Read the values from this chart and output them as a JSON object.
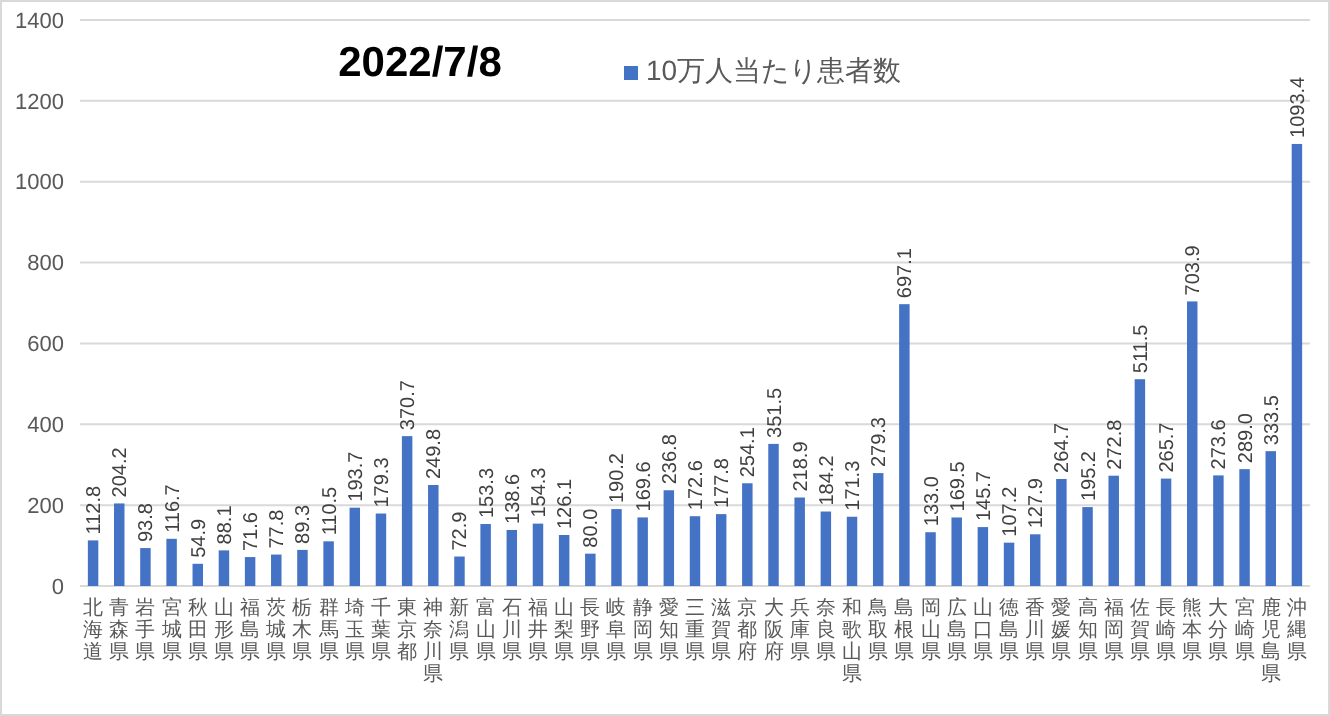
{
  "chart_data": {
    "type": "bar",
    "title": "2022/7/8",
    "categories": [
      "北海道",
      "青森県",
      "岩手県",
      "宮城県",
      "秋田県",
      "山形県",
      "福島県",
      "茨城県",
      "栃木県",
      "群馬県",
      "埼玉県",
      "千葉県",
      "東京都",
      "神奈川県",
      "新潟県",
      "富山県",
      "石川県",
      "福井県",
      "山梨県",
      "長野県",
      "岐阜県",
      "静岡県",
      "愛知県",
      "三重県",
      "滋賀県",
      "京都府",
      "大阪府",
      "兵庫県",
      "奈良県",
      "和歌山県",
      "鳥取県",
      "島根県",
      "岡山県",
      "広島県",
      "山口県",
      "徳島県",
      "香川県",
      "愛媛県",
      "高知県",
      "福岡県",
      "佐賀県",
      "長崎県",
      "熊本県",
      "大分県",
      "宮崎県",
      "鹿児島県",
      "沖縄県"
    ],
    "series": [
      {
        "name": "10万人当たり患者数",
        "color": "#4472c4",
        "values": [
          112.8,
          204.2,
          93.8,
          116.7,
          54.9,
          88.1,
          71.6,
          77.8,
          89.3,
          110.5,
          193.7,
          179.3,
          370.7,
          249.8,
          72.9,
          153.3,
          138.6,
          154.3,
          126.1,
          80.0,
          190.2,
          169.6,
          236.8,
          172.6,
          177.8,
          254.1,
          351.5,
          218.9,
          184.2,
          171.3,
          279.3,
          697.1,
          133.0,
          169.5,
          145.7,
          107.2,
          127.9,
          264.7,
          195.2,
          272.8,
          511.5,
          265.7,
          703.9,
          273.6,
          289.0,
          333.5,
          1093.4
        ],
        "value_labels": [
          "112.8",
          "204.2",
          "93.8",
          "116.7",
          "54.9",
          "88.1",
          "71.6",
          "77.8",
          "89.3",
          "110.5",
          "193.7",
          "179.3",
          "370.7",
          "249.8",
          "72.9",
          "153.3",
          "138.6",
          "154.3",
          "126.1",
          "80.0",
          "190.2",
          "169.6",
          "236.8",
          "172.6",
          "177.8",
          "254.1",
          "351.5",
          "218.9",
          "184.2",
          "171.3",
          "279.3",
          "697.1",
          "133.0",
          "169.5",
          "145.7",
          "107.2",
          "127.9",
          "264.7",
          "195.2",
          "272.8",
          "511.5",
          "265.7",
          "703.9",
          "273.6",
          "289.0",
          "333.5",
          "1093.4"
        ]
      }
    ],
    "ylim": [
      0,
      1400
    ],
    "yticks": [
      0,
      200,
      400,
      600,
      800,
      1000,
      1200,
      1400
    ],
    "grid": "y",
    "legend": "top"
  }
}
